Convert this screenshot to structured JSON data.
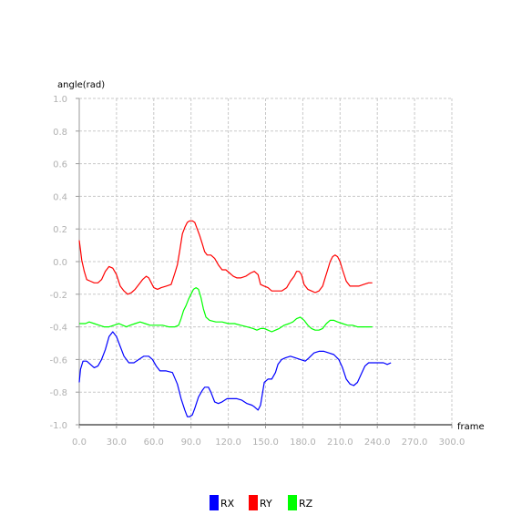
{
  "chart_data": {
    "type": "line",
    "title": "",
    "xlabel": "frame",
    "ylabel": "angle(rad)",
    "xlim": [
      0,
      300
    ],
    "ylim": [
      -1.0,
      1.0
    ],
    "x_ticks": [
      0,
      30,
      60,
      90,
      120,
      150,
      180,
      210,
      240,
      270,
      300
    ],
    "x_tick_labels": [
      "0.0",
      "30.0",
      "60.0",
      "90.0",
      "120.0",
      "150.0",
      "180.0",
      "210.0",
      "240.0",
      "270.0",
      "300.0"
    ],
    "y_ticks": [
      -1.0,
      -0.8,
      -0.6,
      -0.4,
      -0.2,
      0.0,
      0.2,
      0.4,
      0.6,
      0.8,
      1.0
    ],
    "y_tick_labels": [
      "-1.0",
      "-0.8",
      "-0.6",
      "-0.4",
      "-0.2",
      "0.0",
      "0.2",
      "0.4",
      "0.6",
      "0.8",
      "1.0"
    ],
    "grid": true,
    "legend_position": "bottom-center",
    "series": [
      {
        "name": "RX",
        "color": "#0000ff",
        "points": [
          [
            0,
            -0.74
          ],
          [
            1,
            -0.66
          ],
          [
            3,
            -0.61
          ],
          [
            6,
            -0.61
          ],
          [
            9,
            -0.63
          ],
          [
            12,
            -0.65
          ],
          [
            15,
            -0.64
          ],
          [
            18,
            -0.6
          ],
          [
            21,
            -0.54
          ],
          [
            24,
            -0.46
          ],
          [
            27,
            -0.43
          ],
          [
            30,
            -0.46
          ],
          [
            33,
            -0.52
          ],
          [
            36,
            -0.58
          ],
          [
            40,
            -0.62
          ],
          [
            44,
            -0.62
          ],
          [
            48,
            -0.6
          ],
          [
            52,
            -0.58
          ],
          [
            56,
            -0.58
          ],
          [
            59,
            -0.6
          ],
          [
            62,
            -0.64
          ],
          [
            65,
            -0.67
          ],
          [
            70,
            -0.67
          ],
          [
            75,
            -0.68
          ],
          [
            79,
            -0.75
          ],
          [
            82,
            -0.84
          ],
          [
            85,
            -0.91
          ],
          [
            87,
            -0.95
          ],
          [
            89,
            -0.95
          ],
          [
            91,
            -0.94
          ],
          [
            93,
            -0.9
          ],
          [
            96,
            -0.83
          ],
          [
            99,
            -0.79
          ],
          [
            101,
            -0.77
          ],
          [
            104,
            -0.77
          ],
          [
            106,
            -0.8
          ],
          [
            109,
            -0.86
          ],
          [
            112,
            -0.87
          ],
          [
            115,
            -0.86
          ],
          [
            119,
            -0.84
          ],
          [
            123,
            -0.84
          ],
          [
            127,
            -0.84
          ],
          [
            131,
            -0.85
          ],
          [
            135,
            -0.87
          ],
          [
            139,
            -0.88
          ],
          [
            141,
            -0.89
          ],
          [
            144,
            -0.91
          ],
          [
            146,
            -0.88
          ],
          [
            149,
            -0.74
          ],
          [
            152,
            -0.72
          ],
          [
            155,
            -0.72
          ],
          [
            158,
            -0.68
          ],
          [
            160,
            -0.63
          ],
          [
            163,
            -0.6
          ],
          [
            166,
            -0.59
          ],
          [
            170,
            -0.58
          ],
          [
            174,
            -0.59
          ],
          [
            178,
            -0.6
          ],
          [
            182,
            -0.61
          ],
          [
            185,
            -0.59
          ],
          [
            189,
            -0.56
          ],
          [
            193,
            -0.55
          ],
          [
            197,
            -0.55
          ],
          [
            201,
            -0.56
          ],
          [
            205,
            -0.57
          ],
          [
            209,
            -0.6
          ],
          [
            212,
            -0.65
          ],
          [
            215,
            -0.72
          ],
          [
            218,
            -0.75
          ],
          [
            221,
            -0.76
          ],
          [
            224,
            -0.74
          ],
          [
            227,
            -0.69
          ],
          [
            230,
            -0.64
          ],
          [
            233,
            -0.62
          ],
          [
            237,
            -0.62
          ],
          [
            241,
            -0.62
          ],
          [
            245,
            -0.62
          ],
          [
            248,
            -0.63
          ],
          [
            251,
            -0.62
          ]
        ]
      },
      {
        "name": "RY",
        "color": "#ff0000",
        "points": [
          [
            0,
            0.13
          ],
          [
            1,
            0.07
          ],
          [
            2,
            0.01
          ],
          [
            4,
            -0.06
          ],
          [
            6,
            -0.11
          ],
          [
            9,
            -0.12
          ],
          [
            12,
            -0.13
          ],
          [
            15,
            -0.13
          ],
          [
            18,
            -0.11
          ],
          [
            21,
            -0.06
          ],
          [
            24,
            -0.03
          ],
          [
            27,
            -0.04
          ],
          [
            30,
            -0.08
          ],
          [
            33,
            -0.15
          ],
          [
            36,
            -0.18
          ],
          [
            39,
            -0.2
          ],
          [
            42,
            -0.19
          ],
          [
            45,
            -0.17
          ],
          [
            48,
            -0.14
          ],
          [
            51,
            -0.11
          ],
          [
            54,
            -0.09
          ],
          [
            56,
            -0.1
          ],
          [
            58,
            -0.13
          ],
          [
            60,
            -0.16
          ],
          [
            63,
            -0.17
          ],
          [
            66,
            -0.16
          ],
          [
            70,
            -0.15
          ],
          [
            74,
            -0.14
          ],
          [
            77,
            -0.07
          ],
          [
            79,
            -0.02
          ],
          [
            81,
            0.07
          ],
          [
            83,
            0.17
          ],
          [
            85,
            0.21
          ],
          [
            87,
            0.24
          ],
          [
            89,
            0.25
          ],
          [
            91,
            0.25
          ],
          [
            93,
            0.24
          ],
          [
            95,
            0.2
          ],
          [
            97,
            0.16
          ],
          [
            99,
            0.11
          ],
          [
            101,
            0.06
          ],
          [
            103,
            0.04
          ],
          [
            106,
            0.04
          ],
          [
            109,
            0.02
          ],
          [
            112,
            -0.02
          ],
          [
            115,
            -0.05
          ],
          [
            118,
            -0.05
          ],
          [
            121,
            -0.07
          ],
          [
            124,
            -0.09
          ],
          [
            127,
            -0.1
          ],
          [
            130,
            -0.1
          ],
          [
            134,
            -0.09
          ],
          [
            138,
            -0.07
          ],
          [
            141,
            -0.06
          ],
          [
            144,
            -0.08
          ],
          [
            146,
            -0.14
          ],
          [
            149,
            -0.15
          ],
          [
            152,
            -0.16
          ],
          [
            155,
            -0.18
          ],
          [
            159,
            -0.18
          ],
          [
            163,
            -0.18
          ],
          [
            167,
            -0.16
          ],
          [
            170,
            -0.12
          ],
          [
            173,
            -0.09
          ],
          [
            175,
            -0.06
          ],
          [
            177,
            -0.06
          ],
          [
            179,
            -0.08
          ],
          [
            181,
            -0.14
          ],
          [
            184,
            -0.17
          ],
          [
            187,
            -0.18
          ],
          [
            190,
            -0.19
          ],
          [
            193,
            -0.18
          ],
          [
            196,
            -0.15
          ],
          [
            198,
            -0.1
          ],
          [
            200,
            -0.05
          ],
          [
            202,
            0.0
          ],
          [
            204,
            0.03
          ],
          [
            206,
            0.04
          ],
          [
            208,
            0.03
          ],
          [
            210,
            0.0
          ],
          [
            212,
            -0.05
          ],
          [
            215,
            -0.12
          ],
          [
            218,
            -0.15
          ],
          [
            221,
            -0.15
          ],
          [
            225,
            -0.15
          ],
          [
            229,
            -0.14
          ],
          [
            233,
            -0.13
          ],
          [
            236,
            -0.13
          ]
        ]
      },
      {
        "name": "RZ",
        "color": "#00ff00",
        "points": [
          [
            0,
            -0.38
          ],
          [
            2,
            -0.38
          ],
          [
            5,
            -0.38
          ],
          [
            8,
            -0.37
          ],
          [
            12,
            -0.38
          ],
          [
            16,
            -0.39
          ],
          [
            20,
            -0.4
          ],
          [
            24,
            -0.4
          ],
          [
            28,
            -0.39
          ],
          [
            32,
            -0.38
          ],
          [
            35,
            -0.39
          ],
          [
            38,
            -0.4
          ],
          [
            41,
            -0.39
          ],
          [
            45,
            -0.38
          ],
          [
            49,
            -0.37
          ],
          [
            53,
            -0.38
          ],
          [
            57,
            -0.39
          ],
          [
            62,
            -0.39
          ],
          [
            67,
            -0.39
          ],
          [
            72,
            -0.4
          ],
          [
            77,
            -0.4
          ],
          [
            80,
            -0.39
          ],
          [
            82,
            -0.35
          ],
          [
            84,
            -0.3
          ],
          [
            86,
            -0.27
          ],
          [
            88,
            -0.23
          ],
          [
            90,
            -0.2
          ],
          [
            92,
            -0.17
          ],
          [
            94,
            -0.16
          ],
          [
            96,
            -0.17
          ],
          [
            98,
            -0.22
          ],
          [
            100,
            -0.29
          ],
          [
            102,
            -0.34
          ],
          [
            105,
            -0.36
          ],
          [
            110,
            -0.37
          ],
          [
            115,
            -0.37
          ],
          [
            120,
            -0.38
          ],
          [
            125,
            -0.38
          ],
          [
            130,
            -0.39
          ],
          [
            135,
            -0.4
          ],
          [
            140,
            -0.41
          ],
          [
            143,
            -0.42
          ],
          [
            146,
            -0.41
          ],
          [
            149,
            -0.41
          ],
          [
            152,
            -0.42
          ],
          [
            155,
            -0.43
          ],
          [
            158,
            -0.42
          ],
          [
            161,
            -0.41
          ],
          [
            165,
            -0.39
          ],
          [
            169,
            -0.38
          ],
          [
            172,
            -0.37
          ],
          [
            175,
            -0.35
          ],
          [
            178,
            -0.34
          ],
          [
            181,
            -0.36
          ],
          [
            184,
            -0.39
          ],
          [
            187,
            -0.41
          ],
          [
            190,
            -0.42
          ],
          [
            193,
            -0.42
          ],
          [
            196,
            -0.41
          ],
          [
            199,
            -0.38
          ],
          [
            202,
            -0.36
          ],
          [
            205,
            -0.36
          ],
          [
            208,
            -0.37
          ],
          [
            212,
            -0.38
          ],
          [
            216,
            -0.39
          ],
          [
            220,
            -0.39
          ],
          [
            224,
            -0.4
          ],
          [
            228,
            -0.4
          ],
          [
            232,
            -0.4
          ],
          [
            236,
            -0.4
          ]
        ]
      }
    ]
  }
}
